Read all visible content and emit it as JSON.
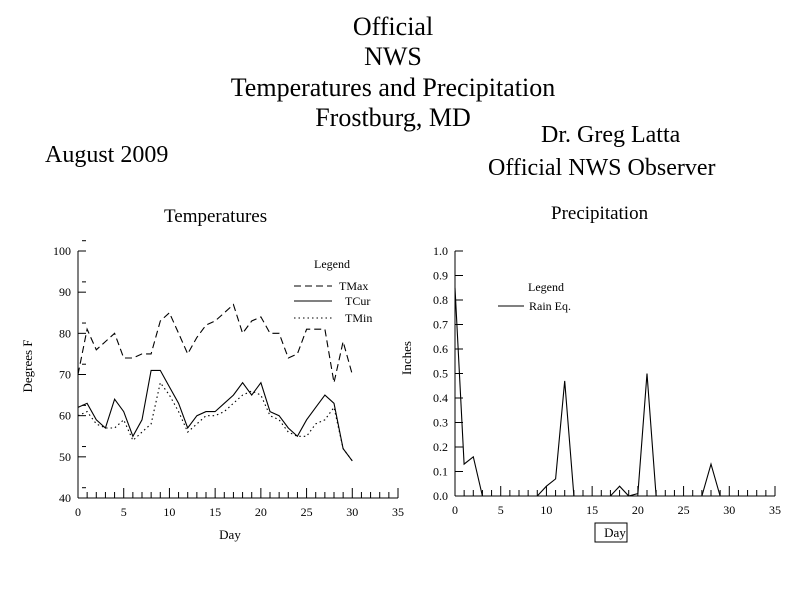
{
  "header": {
    "title_lines": [
      "Official",
      "NWS",
      "Temperatures and Precipitation",
      "Frostburg, MD"
    ],
    "month": "August 2009",
    "observer_name": "Dr. Greg Latta",
    "observer_title": "Official NWS Observer"
  },
  "chart_data": [
    {
      "type": "line",
      "title": "Temperatures",
      "xlabel": "Day",
      "ylabel": "Degrees F",
      "xlim": [
        0,
        35
      ],
      "ylim": [
        40,
        100
      ],
      "xticks": [
        0,
        5,
        10,
        15,
        20,
        25,
        30,
        35
      ],
      "yticks": [
        40,
        50,
        60,
        70,
        80,
        90,
        100
      ],
      "grid": false,
      "legend": {
        "title": "Legend",
        "position": "top-right"
      },
      "x": [
        0,
        1,
        2,
        3,
        4,
        5,
        6,
        7,
        8,
        9,
        10,
        11,
        12,
        13,
        14,
        15,
        16,
        17,
        18,
        19,
        20,
        21,
        22,
        23,
        24,
        25,
        26,
        27,
        28,
        29,
        30
      ],
      "series": [
        {
          "name": "TMax",
          "style": "dashed",
          "values": [
            70,
            81,
            76,
            78,
            80,
            74,
            74,
            75,
            75,
            83,
            85,
            80,
            75,
            79,
            82,
            83,
            85,
            87,
            80,
            83,
            84,
            80,
            80,
            74,
            75,
            81,
            81,
            81,
            68,
            78,
            70
          ]
        },
        {
          "name": "TCur",
          "style": "solid",
          "values": [
            62,
            63,
            59,
            57,
            64,
            61,
            55,
            59,
            71,
            71,
            67,
            63,
            57,
            60,
            61,
            61,
            63,
            65,
            68,
            65,
            68,
            61,
            60,
            57,
            55,
            59,
            62,
            65,
            63,
            52,
            49
          ]
        },
        {
          "name": "TMin",
          "style": "dotted",
          "values": [
            60,
            61,
            58,
            57,
            57,
            59,
            54,
            56,
            58,
            68,
            65,
            61,
            56,
            58,
            60,
            60,
            61,
            63,
            65,
            66,
            65,
            60,
            59,
            56,
            55,
            55,
            58,
            59,
            62,
            52,
            49
          ]
        }
      ]
    },
    {
      "type": "line",
      "title": "Precipitation",
      "xlabel": "Day",
      "ylabel": "Inches",
      "xlim": [
        0,
        35
      ],
      "ylim": [
        0,
        1.0
      ],
      "xticks": [
        0,
        5,
        10,
        15,
        20,
        25,
        30,
        35
      ],
      "yticks": [
        "0.0",
        "0.1",
        "0.2",
        "0.3",
        "0.4",
        "0.5",
        "0.6",
        "0.7",
        "0.8",
        "0.9",
        "1.0"
      ],
      "grid": false,
      "legend": {
        "title": "Legend",
        "position": "top-left"
      },
      "x": [
        0,
        1,
        2,
        3,
        4,
        5,
        6,
        7,
        8,
        9,
        10,
        11,
        12,
        13,
        14,
        15,
        16,
        17,
        18,
        19,
        20,
        21,
        22,
        23,
        24,
        25,
        26,
        27,
        28,
        29,
        30
      ],
      "series": [
        {
          "name": "Rain Eq.",
          "style": "solid",
          "values": [
            0.85,
            0.13,
            0.16,
            0,
            0,
            0,
            0,
            0,
            0,
            0,
            0.04,
            0.07,
            0.47,
            0,
            0,
            0,
            0,
            0,
            0.04,
            0,
            0.01,
            0.5,
            0,
            0,
            0,
            0,
            0,
            0,
            0.13,
            0,
            0
          ]
        }
      ]
    }
  ]
}
